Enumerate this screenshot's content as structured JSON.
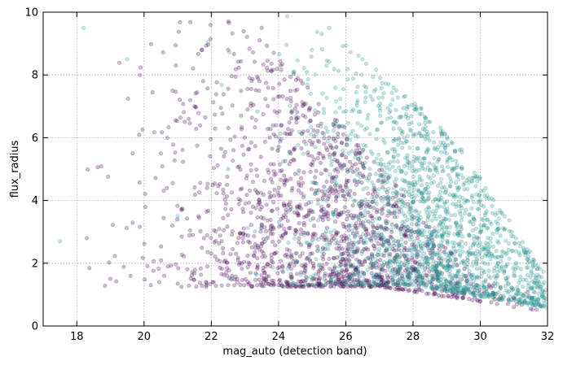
{
  "chart_data": {
    "type": "scatter",
    "title": "",
    "xlabel": "mag_auto (detection band)",
    "ylabel": "flux_radius",
    "xlim": [
      17,
      32
    ],
    "ylim": [
      0,
      10
    ],
    "xticks": [
      18,
      20,
      22,
      24,
      26,
      28,
      30,
      32
    ],
    "yticks": [
      0,
      2,
      4,
      6,
      8,
      10
    ],
    "grid": true,
    "legend": "none",
    "series": [
      {
        "color": "#440154",
        "alpha": 0.25,
        "description_sample": [
          [
            18.3,
            2.8
          ],
          [
            19.0,
            1.5
          ],
          [
            20.2,
            1.3
          ],
          [
            21.0,
            1.35
          ],
          [
            22.5,
            1.3
          ],
          [
            24.0,
            1.3
          ],
          [
            25.0,
            1.3
          ],
          [
            20.5,
            5.5
          ],
          [
            21.5,
            7.0
          ],
          [
            22.5,
            8.8
          ],
          [
            23.5,
            9.5
          ],
          [
            24.5,
            7.5
          ],
          [
            25.5,
            6.0
          ],
          [
            26.0,
            4.5
          ],
          [
            26.5,
            3.5
          ],
          [
            27.0,
            2.8
          ],
          [
            27.5,
            2.2
          ],
          [
            28.0,
            1.8
          ],
          [
            28.5,
            1.4
          ],
          [
            29.0,
            1.1
          ],
          [
            29.5,
            0.9
          ],
          [
            30.0,
            0.8
          ],
          [
            30.5,
            0.7
          ],
          [
            31.0,
            0.6
          ],
          [
            31.5,
            0.55
          ]
        ]
      },
      {
        "color": "#21918c",
        "alpha": 0.25,
        "description_sample": [
          [
            17.5,
            2.7
          ],
          [
            18.2,
            9.5
          ],
          [
            19.5,
            8.5
          ],
          [
            21.0,
            3.5
          ],
          [
            22.5,
            5.0
          ],
          [
            24.0,
            6.0
          ],
          [
            25.5,
            9.5
          ],
          [
            26.5,
            8.5
          ],
          [
            27.5,
            7.5
          ],
          [
            28.5,
            6.5
          ],
          [
            29.0,
            5.5
          ],
          [
            29.5,
            4.5
          ],
          [
            30.0,
            3.0
          ],
          [
            30.5,
            2.2
          ],
          [
            31.0,
            1.6
          ],
          [
            31.5,
            1.2
          ],
          [
            31.9,
            0.9
          ]
        ]
      }
    ]
  }
}
